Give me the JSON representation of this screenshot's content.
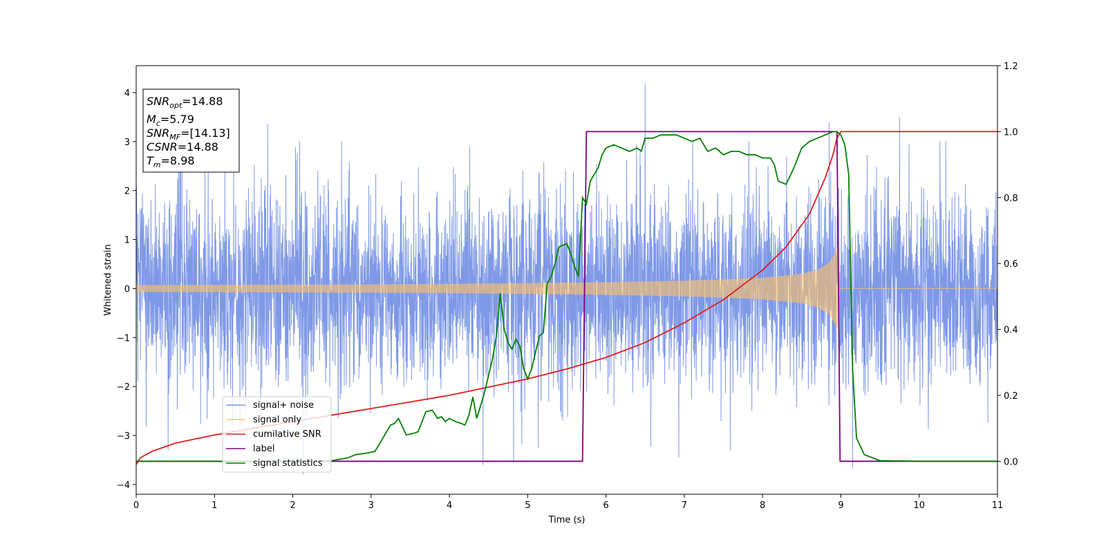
{
  "chart_data": {
    "type": "line",
    "xlabel": "Time (s)",
    "ylabel_left": "Whitened strain",
    "ylabel_right": "",
    "xlim": [
      0,
      11
    ],
    "ylim_left": [
      -4.2,
      4.55
    ],
    "ylim_right": [
      -0.1,
      1.2
    ],
    "xticks": [
      "0",
      "1",
      "2",
      "3",
      "4",
      "5",
      "6",
      "7",
      "8",
      "9",
      "10",
      "11"
    ],
    "yticks_left": [
      "−4",
      "−3",
      "−2",
      "−1",
      "0",
      "1",
      "2",
      "3",
      "4"
    ],
    "yticks_right": [
      "0.0",
      "0.2",
      "0.4",
      "0.6",
      "0.8",
      "1.0",
      "1.2"
    ],
    "grid": false,
    "legend_position": "lower-left",
    "annotation": {
      "lines": [
        {
          "main": "SNR",
          "sub": "opt",
          "rest": "=14.88"
        },
        {
          "main": "M",
          "sub": "c",
          "rest": "=5.79"
        },
        {
          "main": "SNR",
          "sub": "MF",
          "rest": "=[14.13]"
        },
        {
          "main": "CSNR",
          "sub": "",
          "rest": "=14.88"
        },
        {
          "main": "T",
          "sub": "m",
          "rest": "=8.98"
        }
      ]
    },
    "series": [
      {
        "name": "signal+ noise",
        "axis": "left",
        "color": "#7893e6",
        "description_values": {
          "noise_sigma": 0.95,
          "notable_peaks": [
            {
              "x": 6.5,
              "y": 4.18
            },
            {
              "x": 8.85,
              "y": 3.38
            },
            {
              "x": 9.75,
              "y": 3.5
            },
            {
              "x": 1.68,
              "y": 3.36
            },
            {
              "x": 4.43,
              "y": -3.6
            },
            {
              "x": 4.82,
              "y": -3.55
            },
            {
              "x": 2.13,
              "y": -3.8
            },
            {
              "x": 9.15,
              "y": -3.68
            },
            {
              "x": 6.93,
              "y": -3.45
            }
          ]
        }
      },
      {
        "name": "signal only",
        "axis": "left",
        "color": "#ffc266",
        "envelope": {
          "x": [
            0,
            1,
            2,
            3,
            4,
            5,
            6,
            7,
            7.5,
            8,
            8.5,
            8.7,
            8.85,
            8.95,
            8.98
          ],
          "amp": [
            0.07,
            0.075,
            0.08,
            0.085,
            0.095,
            0.11,
            0.13,
            0.16,
            0.185,
            0.22,
            0.3,
            0.38,
            0.52,
            0.78,
            0.95
          ]
        }
      },
      {
        "name": "cumilative SNR",
        "axis": "right",
        "color": "#e31a1c",
        "x": [
          0,
          0.05,
          0.2,
          0.5,
          1,
          1.5,
          2,
          2.5,
          3,
          3.5,
          4,
          4.5,
          5,
          5.5,
          6,
          6.5,
          7,
          7.5,
          8,
          8.3,
          8.6,
          8.8,
          8.9,
          8.95,
          9.0,
          11
        ],
        "values": [
          -0.01,
          0.01,
          0.03,
          0.055,
          0.08,
          0.1,
          0.12,
          0.14,
          0.16,
          0.18,
          0.2,
          0.225,
          0.25,
          0.28,
          0.315,
          0.36,
          0.42,
          0.49,
          0.58,
          0.65,
          0.75,
          0.86,
          0.93,
          0.98,
          1.0,
          1.0
        ]
      },
      {
        "name": "label",
        "axis": "right",
        "color": "#800080",
        "x": [
          0,
          5.7,
          5.75,
          8.95,
          8.99,
          11
        ],
        "values": [
          0,
          0,
          1,
          1,
          0,
          0
        ]
      },
      {
        "name": "signal statistics",
        "axis": "right",
        "color": "#008000",
        "x": [
          0,
          1,
          2,
          2.5,
          2.7,
          2.8,
          2.95,
          3.05,
          3.15,
          3.25,
          3.3,
          3.35,
          3.45,
          3.55,
          3.6,
          3.7,
          3.78,
          3.85,
          3.9,
          3.95,
          4.0,
          4.08,
          4.15,
          4.2,
          4.25,
          4.3,
          4.35,
          4.4,
          4.45,
          4.5,
          4.55,
          4.6,
          4.65,
          4.7,
          4.75,
          4.8,
          4.85,
          4.9,
          4.95,
          5.0,
          5.05,
          5.1,
          5.15,
          5.2,
          5.25,
          5.3,
          5.35,
          5.4,
          5.5,
          5.55,
          5.6,
          5.65,
          5.7,
          5.75,
          5.8,
          5.85,
          5.9,
          5.95,
          6.0,
          6.1,
          6.2,
          6.3,
          6.4,
          6.45,
          6.5,
          6.6,
          6.7,
          6.8,
          6.9,
          7.0,
          7.1,
          7.2,
          7.25,
          7.3,
          7.4,
          7.5,
          7.6,
          7.7,
          7.8,
          7.9,
          8.0,
          8.1,
          8.15,
          8.2,
          8.3,
          8.4,
          8.5,
          8.6,
          8.7,
          8.8,
          8.9,
          8.95,
          9.0,
          9.05,
          9.1,
          9.15,
          9.2,
          9.3,
          9.5,
          10,
          11
        ],
        "values": [
          0,
          0,
          0.0,
          0.002,
          0.01,
          0.02,
          0.025,
          0.03,
          0.07,
          0.11,
          0.115,
          0.13,
          0.08,
          0.085,
          0.09,
          0.15,
          0.155,
          0.13,
          0.135,
          0.12,
          0.13,
          0.12,
          0.115,
          0.11,
          0.14,
          0.195,
          0.13,
          0.17,
          0.21,
          0.26,
          0.31,
          0.38,
          0.51,
          0.4,
          0.36,
          0.34,
          0.37,
          0.35,
          0.28,
          0.25,
          0.28,
          0.33,
          0.38,
          0.39,
          0.54,
          0.56,
          0.6,
          0.65,
          0.66,
          0.63,
          0.59,
          0.56,
          0.8,
          0.78,
          0.85,
          0.87,
          0.89,
          0.93,
          0.95,
          0.96,
          0.95,
          0.94,
          0.95,
          0.94,
          0.98,
          0.98,
          0.99,
          0.99,
          0.99,
          0.98,
          0.97,
          0.98,
          0.96,
          0.94,
          0.95,
          0.93,
          0.94,
          0.94,
          0.93,
          0.93,
          0.92,
          0.92,
          0.9,
          0.85,
          0.84,
          0.89,
          0.95,
          0.97,
          0.98,
          0.99,
          1.0,
          1.0,
          0.99,
          0.96,
          0.87,
          0.28,
          0.07,
          0.02,
          0.002,
          0.0,
          0.0
        ]
      }
    ]
  }
}
